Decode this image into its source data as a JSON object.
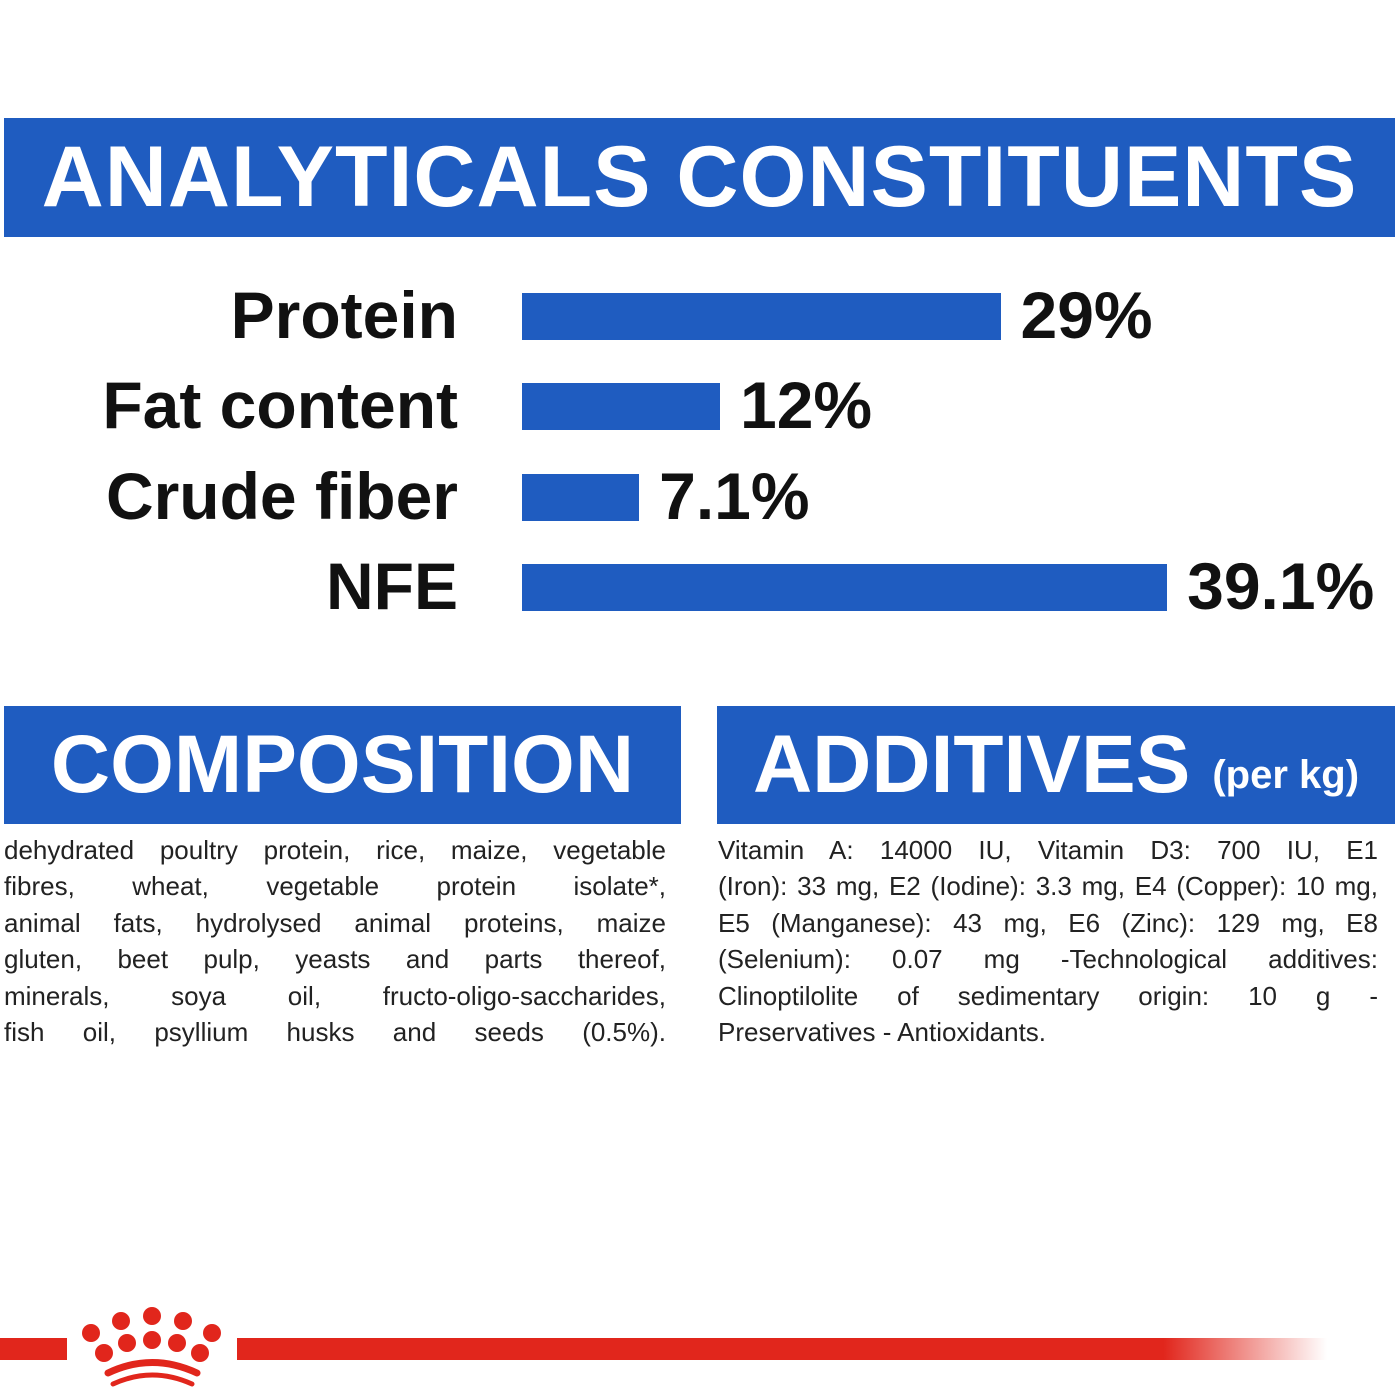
{
  "title": "ANALYTICALS CONSTITUENTS",
  "chart_data": {
    "type": "bar",
    "orientation": "horizontal",
    "categories": [
      "Protein",
      "Fat content",
      "Crude fiber",
      "NFE"
    ],
    "values": [
      29,
      12,
      7.1,
      39.1
    ],
    "labels": [
      "29%",
      "12%",
      "7.1%",
      "39.1%"
    ],
    "unit": "%",
    "grid": false,
    "bar_color": "#1f5cc0"
  },
  "composition": {
    "heading": "COMPOSITION",
    "lines": [
      "dehydrated poultry protein, rice, maize, vegetable",
      "fibres, wheat, vegetable protein isolate*,",
      "animal fats, hydrolysed animal proteins, maize",
      "gluten, beet pulp, yeasts and parts thereof,",
      "minerals, soya oil, fructo-oligo-saccharides,",
      "fish oil, psyllium husks and seeds (0.5%)."
    ]
  },
  "additives": {
    "heading": "ADDITIVES",
    "subheading": "(per kg)",
    "lines": [
      "Vitamin A: 14000 IU, Vitamin D3: 700 IU, E1",
      "(Iron): 33 mg, E2 (Iodine): 3.3 mg, E4 (Copper): 10 mg,",
      "E5 (Manganese): 43 mg, E6 (Zinc): 129 mg, E8",
      "(Selenium): 0.07 mg -Technological additives:",
      "Clinoptilolite of sedimentary origin: 10 g -",
      "Preservatives - Antioxidants."
    ]
  },
  "colors": {
    "brand_blue": "#1f5cc0",
    "brand_red": "#e1261c"
  },
  "footer": {
    "logo": "royal-canin-crown-logo"
  }
}
